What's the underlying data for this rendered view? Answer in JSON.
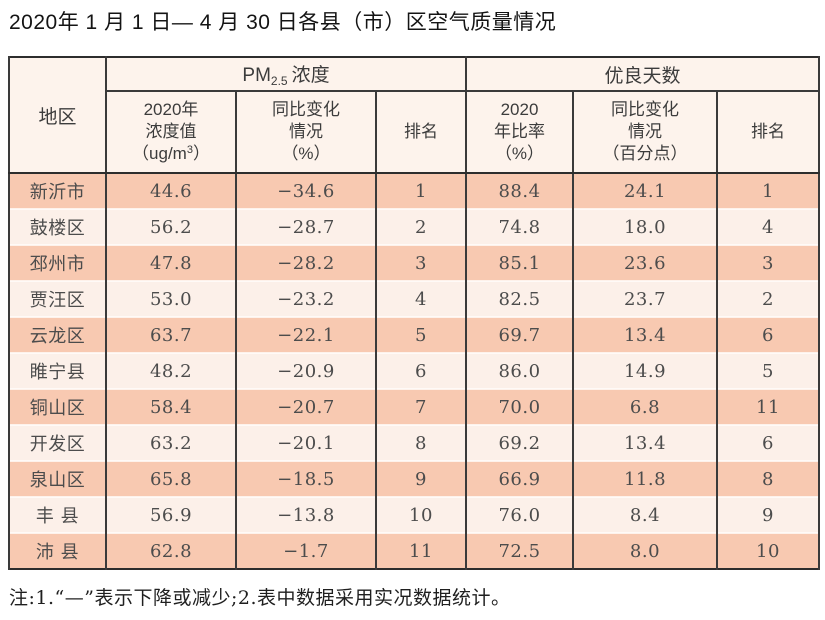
{
  "title": "2020年 1 月 1 日— 4 月 30 日各县（市）区空气质量情况",
  "footnote": "注:1.“—”表示下降或减少;2.表中数据采用实况数据统计。",
  "colors": {
    "row_odd_bg": "#f8c9b1",
    "row_even_bg": "#fcf0e9",
    "header_bg": "#fdf3ec",
    "border": "#333333",
    "data_text": "#4c4c4c",
    "title_text": "#141414"
  },
  "table": {
    "headers": {
      "region": "地区",
      "pm_group": {
        "pre": "PM",
        "sub": "2.5",
        "post": "浓度"
      },
      "good_group": "优良天数",
      "pm_value": {
        "l1": "2020年",
        "l2": "浓度值",
        "l3a": "（ug/m",
        "sup": "3",
        "l3b": "）"
      },
      "pm_change": {
        "l1": "同比变化",
        "l2": "情况",
        "l3": "（%）"
      },
      "pm_rank": "排名",
      "good_rate": {
        "l1": "2020",
        "l2": "年比率",
        "l3": "（%）"
      },
      "good_change": {
        "l1": "同比变化",
        "l2": "情况",
        "l3": "（百分点）"
      },
      "good_rank": "排名"
    },
    "rows": [
      {
        "region": "新沂市",
        "pm_value": "44.6",
        "pm_change": "−34.6",
        "pm_rank": "1",
        "good_rate": "88.4",
        "good_change": "24.1",
        "good_rank": "1"
      },
      {
        "region": "鼓楼区",
        "pm_value": "56.2",
        "pm_change": "−28.7",
        "pm_rank": "2",
        "good_rate": "74.8",
        "good_change": "18.0",
        "good_rank": "4"
      },
      {
        "region": "邳州市",
        "pm_value": "47.8",
        "pm_change": "−28.2",
        "pm_rank": "3",
        "good_rate": "85.1",
        "good_change": "23.6",
        "good_rank": "3"
      },
      {
        "region": "贾汪区",
        "pm_value": "53.0",
        "pm_change": "−23.2",
        "pm_rank": "4",
        "good_rate": "82.5",
        "good_change": "23.7",
        "good_rank": "2"
      },
      {
        "region": "云龙区",
        "pm_value": "63.7",
        "pm_change": "−22.1",
        "pm_rank": "5",
        "good_rate": "69.7",
        "good_change": "13.4",
        "good_rank": "6"
      },
      {
        "region": "睢宁县",
        "pm_value": "48.2",
        "pm_change": "−20.9",
        "pm_rank": "6",
        "good_rate": "86.0",
        "good_change": "14.9",
        "good_rank": "5"
      },
      {
        "region": "铜山区",
        "pm_value": "58.4",
        "pm_change": "−20.7",
        "pm_rank": "7",
        "good_rate": "70.0",
        "good_change": "6.8",
        "good_rank": "11"
      },
      {
        "region": "开发区",
        "pm_value": "63.2",
        "pm_change": "−20.1",
        "pm_rank": "8",
        "good_rate": "69.2",
        "good_change": "13.4",
        "good_rank": "6"
      },
      {
        "region": "泉山区",
        "pm_value": "65.8",
        "pm_change": "−18.5",
        "pm_rank": "9",
        "good_rate": "66.9",
        "good_change": "11.8",
        "good_rank": "8"
      },
      {
        "region": "丰 县",
        "pm_value": "56.9",
        "pm_change": "−13.8",
        "pm_rank": "10",
        "good_rate": "76.0",
        "good_change": "8.4",
        "good_rank": "9"
      },
      {
        "region": "沛 县",
        "pm_value": "62.8",
        "pm_change": "−1.7",
        "pm_rank": "11",
        "good_rate": "72.5",
        "good_change": "8.0",
        "good_rank": "10"
      }
    ]
  }
}
